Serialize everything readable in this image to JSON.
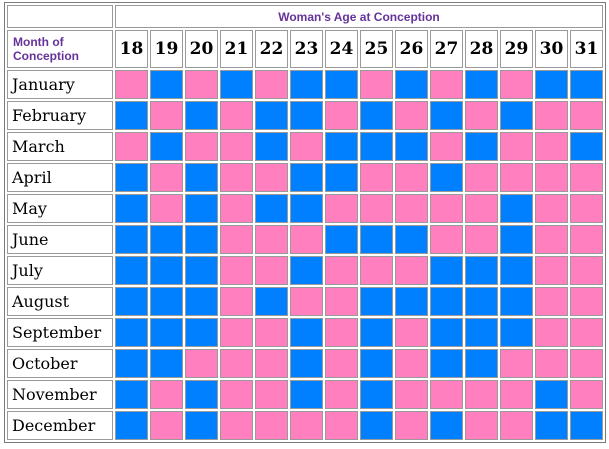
{
  "header": {
    "title": "Woman's Age at Conception",
    "month_label_line1": "Month of",
    "month_label_line2": "Conception"
  },
  "colors": {
    "girl": "#ff7fbf",
    "boy": "#0080ff",
    "label_purple": "#663399"
  },
  "ages": [
    "18",
    "19",
    "20",
    "21",
    "22",
    "23",
    "24",
    "25",
    "26",
    "27",
    "28",
    "29",
    "30",
    "31"
  ],
  "months": [
    {
      "name": "January",
      "cells": [
        "G",
        "B",
        "G",
        "B",
        "G",
        "B",
        "B",
        "G",
        "B",
        "G",
        "B",
        "G",
        "B",
        "B"
      ]
    },
    {
      "name": "February",
      "cells": [
        "B",
        "G",
        "B",
        "G",
        "B",
        "B",
        "G",
        "B",
        "G",
        "B",
        "G",
        "B",
        "G",
        "G"
      ]
    },
    {
      "name": "March",
      "cells": [
        "G",
        "B",
        "G",
        "G",
        "B",
        "G",
        "B",
        "B",
        "B",
        "G",
        "B",
        "G",
        "G",
        "B"
      ]
    },
    {
      "name": "April",
      "cells": [
        "B",
        "G",
        "B",
        "G",
        "G",
        "B",
        "B",
        "G",
        "G",
        "B",
        "G",
        "G",
        "G",
        "G"
      ]
    },
    {
      "name": "May",
      "cells": [
        "B",
        "G",
        "B",
        "G",
        "B",
        "B",
        "G",
        "G",
        "G",
        "G",
        "G",
        "B",
        "G",
        "G"
      ]
    },
    {
      "name": "June",
      "cells": [
        "B",
        "B",
        "B",
        "G",
        "G",
        "G",
        "B",
        "B",
        "B",
        "G",
        "G",
        "B",
        "G",
        "G"
      ]
    },
    {
      "name": "July",
      "cells": [
        "B",
        "B",
        "B",
        "G",
        "G",
        "B",
        "G",
        "G",
        "G",
        "B",
        "B",
        "B",
        "G",
        "G"
      ]
    },
    {
      "name": "August",
      "cells": [
        "B",
        "B",
        "B",
        "G",
        "B",
        "G",
        "G",
        "B",
        "B",
        "B",
        "B",
        "B",
        "G",
        "G"
      ]
    },
    {
      "name": "September",
      "cells": [
        "B",
        "B",
        "B",
        "G",
        "G",
        "B",
        "G",
        "B",
        "G",
        "B",
        "B",
        "B",
        "G",
        "G"
      ]
    },
    {
      "name": "October",
      "cells": [
        "B",
        "B",
        "G",
        "G",
        "G",
        "B",
        "G",
        "B",
        "G",
        "B",
        "B",
        "G",
        "G",
        "G"
      ]
    },
    {
      "name": "November",
      "cells": [
        "B",
        "G",
        "B",
        "G",
        "G",
        "B",
        "G",
        "B",
        "G",
        "G",
        "G",
        "G",
        "B",
        "G"
      ]
    },
    {
      "name": "December",
      "cells": [
        "B",
        "G",
        "B",
        "G",
        "G",
        "G",
        "G",
        "B",
        "G",
        "B",
        "G",
        "G",
        "B",
        "B"
      ]
    }
  ]
}
